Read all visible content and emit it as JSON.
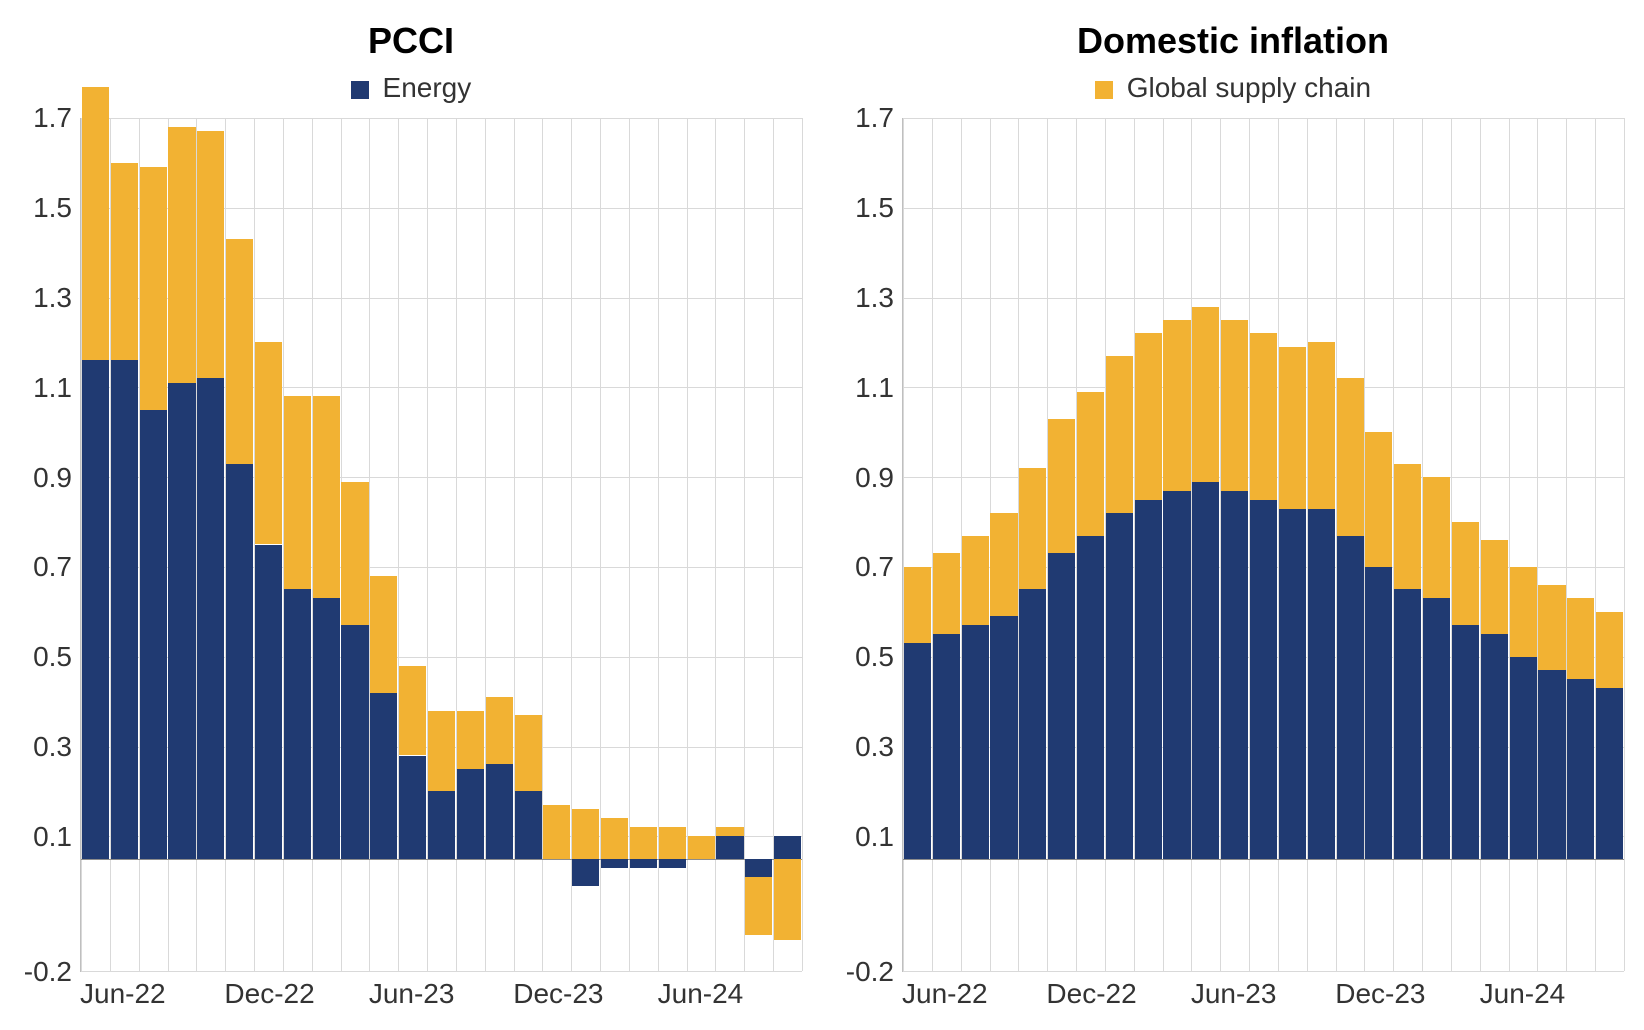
{
  "legend": {
    "energy_label": "Energy",
    "energy_color": "#203a72",
    "gsc_label": "Global supply chain",
    "gsc_color": "#f2b233"
  },
  "typography": {
    "title_fontsize": 36,
    "title_weight": "bold",
    "legend_fontsize": 28,
    "axis_fontsize": 28,
    "font_family": "Arial"
  },
  "axis": {
    "ylim": [
      -0.2,
      1.7
    ],
    "yticks": [
      1.7,
      1.5,
      1.3,
      1.1,
      0.9,
      0.7,
      0.5,
      0.3,
      0.1,
      -0.2
    ],
    "baseline": 0.05,
    "grid_color": "#d9d9d9",
    "background_color": "#ffffff",
    "xticks": [
      "Jun-22",
      "Dec-22",
      "Jun-23",
      "Dec-23",
      "Jun-24"
    ]
  },
  "panels": [
    {
      "title": "PCCI",
      "type": "stacked-bar",
      "months": [
        "Jun-22",
        "Jul-22",
        "Aug-22",
        "Sep-22",
        "Oct-22",
        "Nov-22",
        "Dec-22",
        "Jan-23",
        "Feb-23",
        "Mar-23",
        "Apr-23",
        "May-23",
        "Jun-23",
        "Jul-23",
        "Aug-23",
        "Sep-23",
        "Oct-23",
        "Nov-23",
        "Dec-23",
        "Jan-24",
        "Feb-24",
        "Mar-24",
        "Apr-24",
        "May-24",
        "Jun-24"
      ],
      "energy": [
        1.11,
        1.11,
        1.0,
        1.06,
        1.07,
        0.88,
        0.7,
        0.6,
        0.58,
        0.52,
        0.37,
        0.23,
        0.15,
        0.2,
        0.21,
        0.15,
        0.0,
        -0.06,
        -0.02,
        -0.02,
        -0.02,
        0.0,
        0.05,
        -0.04,
        0.05
      ],
      "gsc": [
        0.61,
        0.44,
        0.54,
        0.57,
        0.55,
        0.5,
        0.45,
        0.43,
        0.45,
        0.32,
        0.26,
        0.2,
        0.18,
        0.13,
        0.15,
        0.17,
        0.12,
        0.11,
        0.09,
        0.07,
        0.07,
        0.05,
        0.02,
        -0.13,
        -0.18
      ]
    },
    {
      "title": "Domestic inflation",
      "type": "stacked-bar",
      "months": [
        "Jun-22",
        "Jul-22",
        "Aug-22",
        "Sep-22",
        "Oct-22",
        "Nov-22",
        "Dec-22",
        "Jan-23",
        "Feb-23",
        "Mar-23",
        "Apr-23",
        "May-23",
        "Jun-23",
        "Jul-23",
        "Aug-23",
        "Sep-23",
        "Oct-23",
        "Nov-23",
        "Dec-23",
        "Jan-24",
        "Feb-24",
        "Mar-24",
        "Apr-24",
        "May-24",
        "Jun-24"
      ],
      "energy": [
        0.48,
        0.5,
        0.52,
        0.54,
        0.6,
        0.68,
        0.72,
        0.77,
        0.8,
        0.82,
        0.84,
        0.82,
        0.8,
        0.78,
        0.78,
        0.72,
        0.65,
        0.6,
        0.58,
        0.52,
        0.5,
        0.45,
        0.42,
        0.4,
        0.38
      ],
      "gsc": [
        0.17,
        0.18,
        0.2,
        0.23,
        0.27,
        0.3,
        0.32,
        0.35,
        0.37,
        0.38,
        0.39,
        0.38,
        0.37,
        0.36,
        0.37,
        0.35,
        0.3,
        0.28,
        0.27,
        0.23,
        0.21,
        0.2,
        0.19,
        0.18,
        0.17
      ]
    }
  ]
}
